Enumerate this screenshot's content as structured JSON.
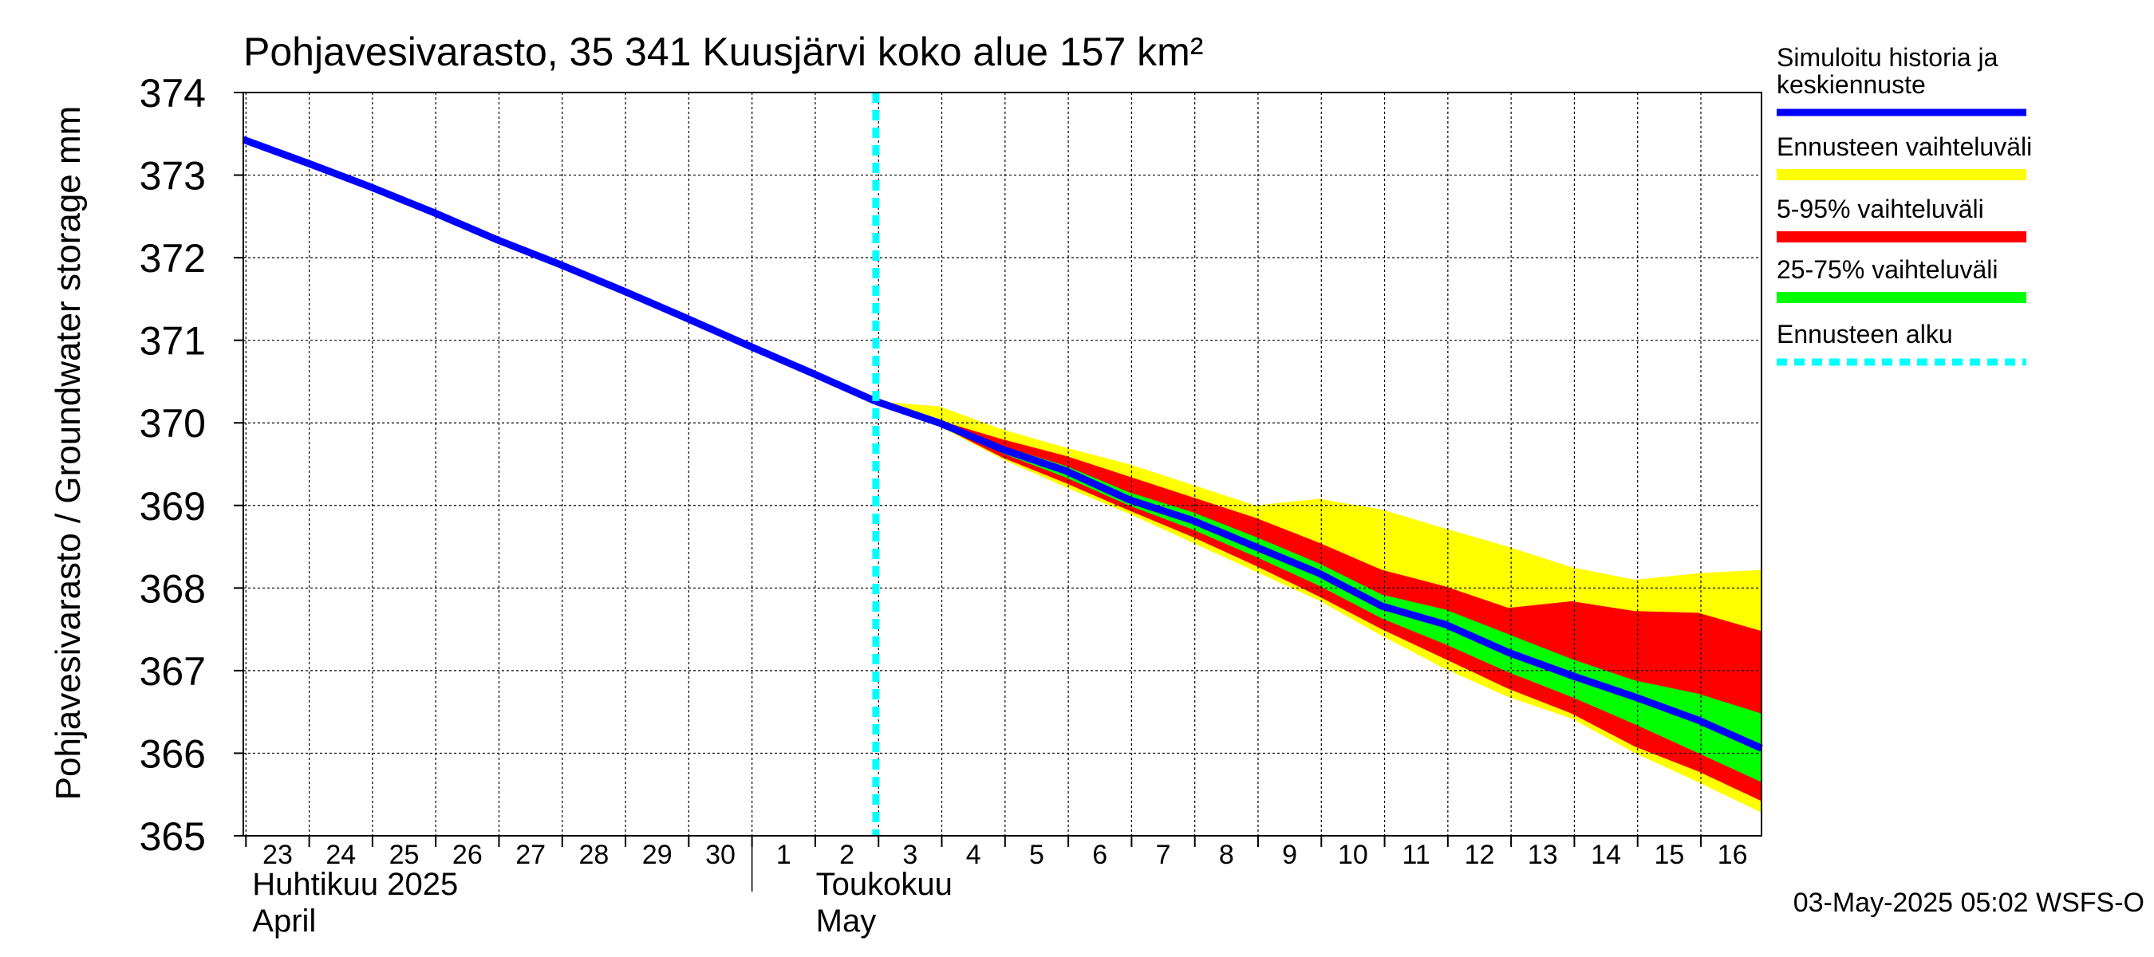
{
  "chart_data": {
    "type": "area",
    "title": "Pohjavesivarasto, 35 341 Kuusjärvi koko alue 157 km²",
    "ylabel": "Pohjavesivarasto / Groundwater storage   mm",
    "ylim": [
      365,
      374
    ],
    "yticks": [
      365,
      366,
      367,
      368,
      369,
      370,
      371,
      372,
      373,
      374
    ],
    "xlim": [
      "2025-04-22T23:00",
      "2025-05-16T23:00"
    ],
    "xticks": [
      "23",
      "24",
      "25",
      "26",
      "27",
      "28",
      "29",
      "30",
      "1",
      "2",
      "3",
      "4",
      "5",
      "6",
      "7",
      "8",
      "9",
      "10",
      "11",
      "12",
      "13",
      "14",
      "15",
      "16"
    ],
    "xtick_dates": [
      "2025-04-23",
      "2025-04-24",
      "2025-04-25",
      "2025-04-26",
      "2025-04-27",
      "2025-04-28",
      "2025-04-29",
      "2025-04-30",
      "2025-05-01",
      "2025-05-02",
      "2025-05-03",
      "2025-05-04",
      "2025-05-05",
      "2025-05-06",
      "2025-05-07",
      "2025-05-08",
      "2025-05-09",
      "2025-05-10",
      "2025-05-11",
      "2025-05-12",
      "2025-05-13",
      "2025-05-14",
      "2025-05-15",
      "2025-05-16"
    ],
    "month_labels": [
      {
        "fi": "Huhtikuu  2025",
        "en": "April",
        "date": "2025-04-23"
      },
      {
        "fi": "Toukokuu",
        "en": "May",
        "date": "2025-05-01"
      }
    ],
    "grid": true,
    "legend_position": "right",
    "forecast_start": "2025-05-02T23:00",
    "history": {
      "name": "Simuloitu historia ja keskiennuste",
      "x": [
        "2025-04-22T23:00",
        "2025-04-23T23:00",
        "2025-04-24T23:00",
        "2025-04-25T23:00",
        "2025-04-26T23:00",
        "2025-04-27T23:00",
        "2025-04-28T23:00",
        "2025-04-29T23:00",
        "2025-04-30T23:00",
        "2025-05-01T23:00",
        "2025-05-02T23:00"
      ],
      "y": [
        373.43,
        373.15,
        372.86,
        372.55,
        372.22,
        371.92,
        371.6,
        371.27,
        370.93,
        370.6,
        370.26
      ]
    },
    "forecast": {
      "x": [
        "2025-05-02T23:00",
        "2025-05-03T23:00",
        "2025-05-04T23:00",
        "2025-05-05T23:00",
        "2025-05-06T23:00",
        "2025-05-07T23:00",
        "2025-05-08T23:00",
        "2025-05-09T23:00",
        "2025-05-10T23:00",
        "2025-05-11T23:00",
        "2025-05-12T23:00",
        "2025-05-13T23:00",
        "2025-05-14T23:00",
        "2025-05-15T23:00",
        "2025-05-16T23:00"
      ],
      "median": [
        370.26,
        370.0,
        369.68,
        369.42,
        369.07,
        368.82,
        368.5,
        368.18,
        367.78,
        367.56,
        367.22,
        366.94,
        366.68,
        366.4,
        366.06
      ],
      "min": [
        370.26,
        369.96,
        369.56,
        369.22,
        368.9,
        368.55,
        368.2,
        367.85,
        367.42,
        367.02,
        366.68,
        366.42,
        366.0,
        365.65,
        365.28
      ],
      "p5": [
        370.26,
        369.97,
        369.58,
        369.27,
        368.94,
        368.62,
        368.27,
        367.9,
        367.5,
        367.14,
        366.78,
        366.48,
        366.08,
        365.78,
        365.42
      ],
      "p25": [
        370.26,
        369.98,
        369.63,
        369.34,
        369.0,
        368.71,
        368.38,
        368.03,
        367.63,
        367.32,
        366.98,
        366.68,
        366.35,
        366.0,
        365.65
      ],
      "p75": [
        370.26,
        370.01,
        369.72,
        369.48,
        369.16,
        368.92,
        368.62,
        368.3,
        367.92,
        367.74,
        367.44,
        367.14,
        366.88,
        366.72,
        366.48
      ],
      "p95": [
        370.26,
        370.03,
        369.8,
        369.6,
        369.35,
        369.1,
        368.85,
        368.55,
        368.22,
        368.02,
        367.76,
        367.84,
        367.72,
        367.7,
        367.48
      ],
      "max": [
        370.26,
        370.2,
        369.92,
        369.7,
        369.5,
        369.25,
        369.0,
        369.08,
        368.95,
        368.72,
        368.5,
        368.25,
        368.1,
        368.18,
        368.22
      ]
    },
    "legend": [
      {
        "label": "Simuloitu historia ja keskiennuste",
        "color": "#0000ff",
        "style": "line"
      },
      {
        "label": "Ennusteen vaihteluväli",
        "color": "#ffff00",
        "style": "band"
      },
      {
        "label": "5-95% vaihteluväli",
        "color": "#ff0000",
        "style": "band"
      },
      {
        "label": "25-75% vaihteluväli",
        "color": "#00ff00",
        "style": "band"
      },
      {
        "label": "Ennusteen alku",
        "color": "#00ffff",
        "style": "dashed"
      }
    ],
    "footer": "03-May-2025 05:02 WSFS-O"
  }
}
